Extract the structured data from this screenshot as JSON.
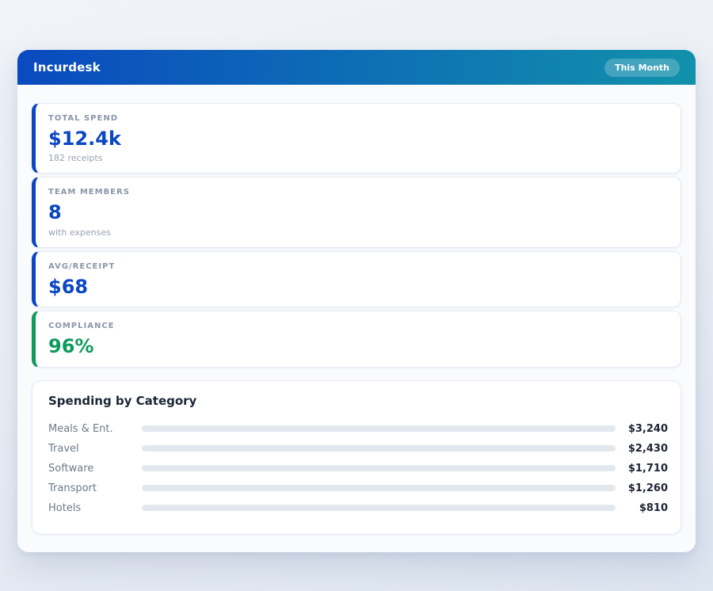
{
  "header": {
    "title": "Incurdesk",
    "badge": "This Month",
    "gradient_from": "#0a4abf",
    "gradient_to": "#1191ab"
  },
  "stats": [
    {
      "label": "TOTAL SPEND",
      "value": "$12.4k",
      "caption": "182 receipts",
      "accent": "#0b46c4"
    },
    {
      "label": "TEAM MEMBERS",
      "value": "8",
      "caption": "with expenses",
      "accent": "#0b46c4"
    },
    {
      "label": "AVG/RECEIPT",
      "value": "$68",
      "caption": "",
      "accent": "#0b46c4"
    },
    {
      "label": "COMPLIANCE",
      "value": "96%",
      "caption": "",
      "accent": "#0d9b5c"
    }
  ],
  "chart_data": {
    "type": "bar",
    "orientation": "horizontal",
    "title": "Spending by Category",
    "categories": [
      "Meals & Ent.",
      "Travel",
      "Software",
      "Transport",
      "Hotels"
    ],
    "values": [
      3240,
      2430,
      1710,
      1260,
      810
    ],
    "scale_max": 4500,
    "track_color": "#e3e8ef",
    "rows": [
      {
        "label": "Meals & Ent.",
        "value": 3240,
        "value_label": "$3,240",
        "color_from": "#0b4fc0",
        "color_to": "#0f97a8"
      },
      {
        "label": "Travel",
        "value": 2430,
        "value_label": "$2,430",
        "color_from": "#0a3fa0",
        "color_to": "#0b76d6"
      },
      {
        "label": "Software",
        "value": 1710,
        "value_label": "$1,710",
        "color_from": "#09a464",
        "color_to": "#1b7f78"
      },
      {
        "label": "Transport",
        "value": 1260,
        "value_label": "$1,260",
        "color_from": "#7d3bf0",
        "color_to": "#a32be4"
      },
      {
        "label": "Hotels",
        "value": 810,
        "value_label": "$810",
        "color_from": "#117a92",
        "color_to": "#0ab8d8"
      }
    ]
  }
}
